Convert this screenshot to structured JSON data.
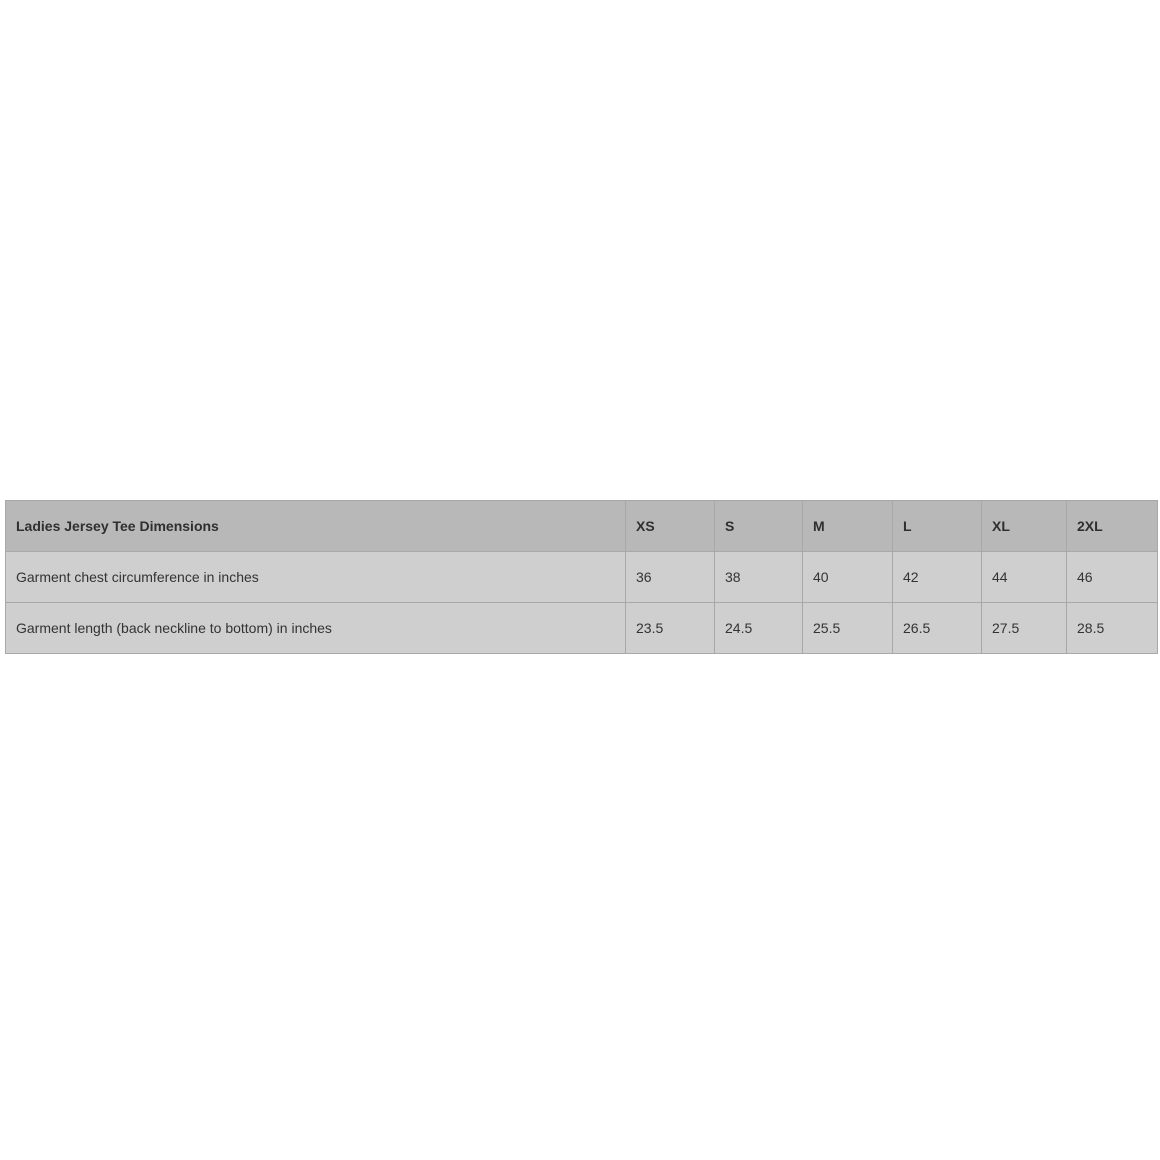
{
  "table": {
    "title": "Ladies Jersey Tee Dimensions",
    "sizes": [
      "XS",
      "S",
      "M",
      "L",
      "XL",
      "2XL"
    ],
    "rows": [
      {
        "label": "Garment chest circumference in inches",
        "values": [
          "36",
          "38",
          "40",
          "42",
          "44",
          "46"
        ]
      },
      {
        "label": "Garment length (back neckline to bottom) in inches",
        "values": [
          "23.5",
          "24.5",
          "25.5",
          "26.5",
          "27.5",
          "28.5"
        ]
      }
    ]
  }
}
